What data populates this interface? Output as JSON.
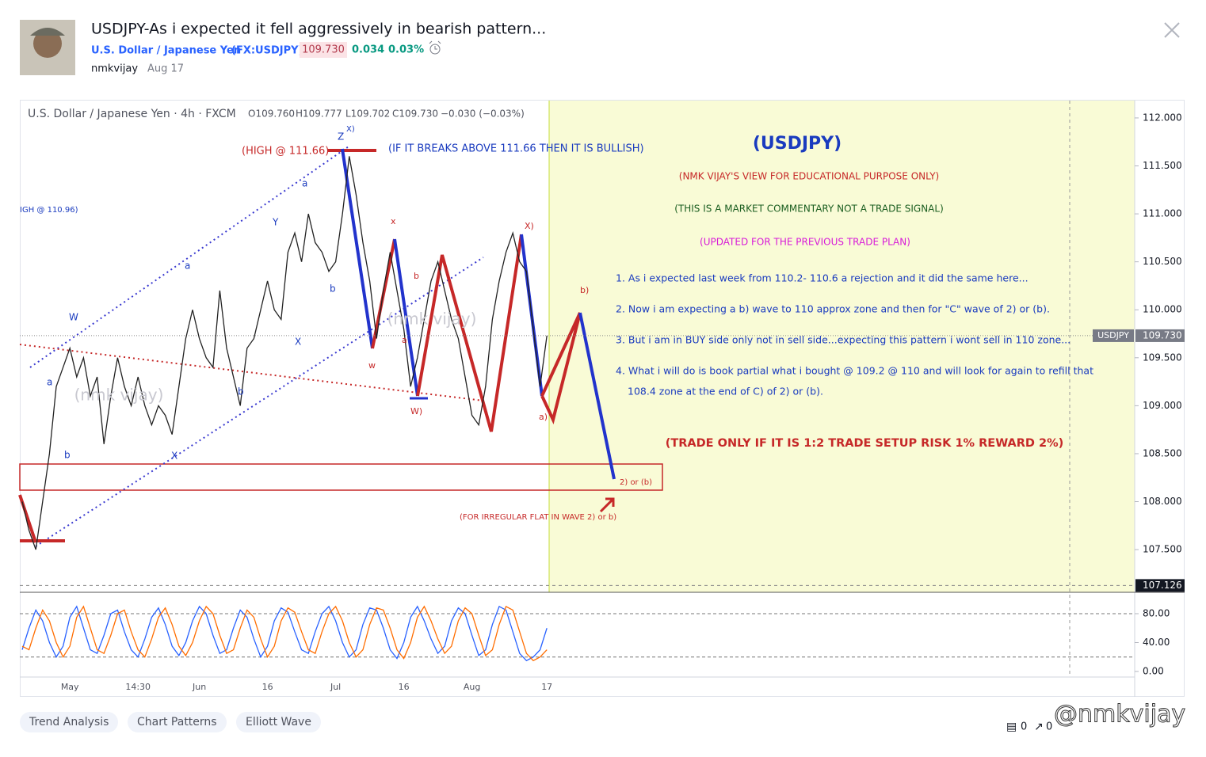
{
  "header": {
    "title": "USDJPY-As i expected it fell aggressively in bearish pattern...",
    "symbol_name": "U.S. Dollar / Japanese Yen",
    "symbol_ticker": "(FX:USDJPY)",
    "price": "109.730",
    "change": "0.034",
    "change_pct": "0.03%",
    "author": "nmkvijay",
    "date": "Aug 17"
  },
  "chart_data": [
    {
      "type": "line",
      "legend": [
        "U.S. Dollar / Japanese Yen · 4h · FXCM",
        "O109.760",
        "H109.777",
        "L109.702",
        "C109.730",
        "−0.030 (−0.03%)"
      ],
      "categories": [
        null,
        null,
        null,
        null,
        null,
        null,
        null,
        "May",
        null,
        null,
        null,
        null,
        null,
        null,
        null,
        null,
        null,
        "14:30",
        null,
        null,
        null,
        null,
        null,
        null,
        null,
        null,
        "Jun",
        null,
        null,
        null,
        null,
        null,
        null,
        null,
        null,
        null,
        "16",
        null,
        null,
        null,
        null,
        null,
        null,
        null,
        null,
        null,
        "Jul",
        null,
        null,
        null,
        null,
        null,
        null,
        null,
        null,
        null,
        "16",
        null,
        null,
        null,
        null,
        null,
        null,
        null,
        null,
        null,
        "Aug",
        null,
        null,
        null,
        null,
        null,
        null,
        null,
        null,
        null,
        null,
        "17"
      ],
      "series": [
        {
          "color": "#222222",
          "values": [
            108.0,
            107.7,
            107.5,
            108.0,
            108.5,
            109.2,
            109.4,
            109.6,
            109.3,
            109.5,
            109.1,
            109.3,
            108.6,
            109.1,
            109.5,
            109.2,
            109.0,
            109.3,
            109.0,
            108.8,
            109.0,
            108.9,
            108.7,
            109.2,
            109.7,
            110.0,
            109.7,
            109.5,
            109.4,
            110.2,
            109.6,
            109.3,
            109.0,
            109.6,
            109.7,
            110.0,
            110.3,
            110.0,
            109.9,
            110.6,
            110.8,
            110.5,
            111.0,
            110.7,
            110.6,
            110.4,
            110.5,
            111.0,
            111.6,
            111.2,
            110.7,
            110.3,
            109.7,
            110.2,
            110.6,
            110.2,
            109.8,
            109.2,
            109.5,
            109.9,
            110.3,
            110.5,
            110.2,
            109.9,
            109.7,
            109.3,
            108.9,
            108.8,
            109.2,
            109.9,
            110.3,
            110.6,
            110.8,
            110.5,
            110.4,
            109.8,
            109.2,
            109.73
          ]
        }
      ],
      "ylim": [
        107.055,
        112.181
      ],
      "yticks": [
        {
          "value": 112,
          "label": "112.000"
        },
        {
          "value": 111.5,
          "label": "111.500"
        },
        {
          "value": 111,
          "label": "111.000"
        },
        {
          "value": 110.5,
          "label": "110.500"
        },
        {
          "value": 110,
          "label": "110.000"
        },
        {
          "value": 109.5,
          "label": "109.500"
        },
        {
          "value": 109,
          "label": "109.000"
        },
        {
          "value": 108.5,
          "label": "108.500"
        },
        {
          "value": 108,
          "label": "108.000"
        },
        {
          "value": 107.5,
          "label": "107.500"
        }
      ],
      "last_price": {
        "value": 109.73,
        "label": "109.730"
      },
      "symbol_tag": "USDJPY",
      "low_marker": {
        "value": 107.126,
        "label": "107.126"
      },
      "annotations": [
        "(HIGH @ 111.66)",
        "(IF IT BREAKS ABOVE 111.66 THEN IT IS BULLISH)",
        "IGH @ 110.96)",
        "(USDJPY)",
        "(NMK VIJAY'S VIEW FOR EDUCATIONAL PURPOSE ONLY)",
        "(THIS IS A MARKET COMMENTARY NOT A TRADE SIGNAL)",
        "(UPDATED FOR THE PREVIOUS TRADE PLAN)",
        "1. As i expected last week from 110.2- 110.6 a rejection and it did the same here...",
        "2. Now i am expecting a b) wave to 110 approx zone and then  for \"C\" wave of 2) or (b).",
        "3. But i am in BUY side only not in sell side...expecting this pattern i wont sell in 110 zone...",
        "4. What i will do is book partial what i bought @ 109.2 @ 110 and will look for again to refill that",
        "108.4 zone at the end of C) of 2) or (b).",
        "(TRADE ONLY IF IT IS 1:2 TRADE SETUP RISK 1% REWARD 2%)",
        "2) or (b)",
        "(FOR IRREGULAR FLAT IN WAVE 2) or b)",
        "Z",
        "X)",
        "a",
        "Y",
        "a",
        "W",
        "a",
        "b",
        "b",
        "X",
        "b",
        "X",
        "x",
        "b",
        "a",
        "w",
        "W)",
        "X)",
        "b)",
        "a)",
        "(nmk vijay)",
        "(nmk vijay)"
      ]
    },
    {
      "type": "line",
      "series": [
        {
          "color": "#2962ff",
          "values": [
            30,
            60,
            85,
            70,
            40,
            20,
            35,
            75,
            90,
            60,
            30,
            25,
            50,
            80,
            85,
            55,
            30,
            20,
            45,
            75,
            88,
            65,
            35,
            22,
            40,
            70,
            90,
            80,
            50,
            25,
            30,
            60,
            85,
            75,
            45,
            20,
            35,
            70,
            88,
            82,
            55,
            30,
            25,
            55,
            80,
            90,
            70,
            40,
            20,
            30,
            65,
            88,
            85,
            60,
            30,
            18,
            40,
            75,
            90,
            70,
            45,
            25,
            35,
            70,
            88,
            80,
            50,
            22,
            30,
            65,
            90,
            85,
            55,
            25,
            15,
            20,
            30,
            60
          ]
        },
        {
          "color": "#ff6d00",
          "values": [
            35,
            30,
            60,
            85,
            70,
            40,
            20,
            35,
            75,
            90,
            60,
            30,
            25,
            50,
            80,
            85,
            55,
            30,
            20,
            45,
            75,
            88,
            65,
            35,
            22,
            40,
            70,
            90,
            80,
            50,
            25,
            30,
            60,
            85,
            75,
            45,
            20,
            35,
            70,
            88,
            82,
            55,
            30,
            25,
            55,
            80,
            90,
            70,
            40,
            20,
            30,
            65,
            88,
            85,
            60,
            30,
            18,
            40,
            75,
            90,
            70,
            45,
            25,
            35,
            70,
            88,
            80,
            50,
            22,
            30,
            65,
            90,
            85,
            55,
            25,
            15,
            20,
            30
          ]
        }
      ],
      "ylim": [
        -7.7,
        109.6
      ],
      "yticks": [
        {
          "value": 80,
          "label": "80.00"
        },
        {
          "value": 40,
          "label": "40.00"
        },
        {
          "value": 0,
          "label": "0.00"
        }
      ],
      "bands": [
        80,
        20
      ]
    }
  ],
  "tags": [
    "Trend Analysis",
    "Chart Patterns",
    "Elliott Wave"
  ],
  "footer": {
    "comments": "0",
    "shares": "0",
    "watermark": "@nmkvijay"
  }
}
